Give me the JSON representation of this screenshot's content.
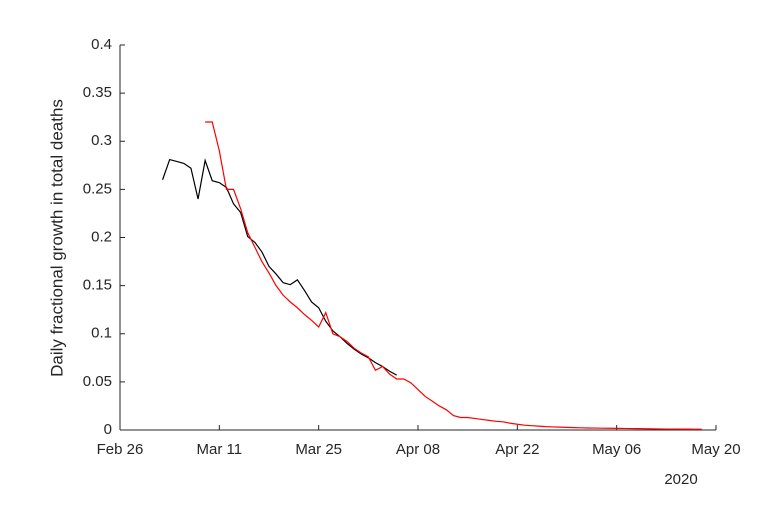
{
  "chart_data": {
    "type": "line",
    "ylabel": "Daily fractional growth in total deaths",
    "year_label": "2020",
    "xlim": [
      "2020-02-26",
      "2020-05-20"
    ],
    "xticks": [
      {
        "value": "2020-02-26",
        "label": "Feb 26"
      },
      {
        "value": "2020-03-11",
        "label": "Mar 11"
      },
      {
        "value": "2020-03-25",
        "label": "Mar 25"
      },
      {
        "value": "2020-04-08",
        "label": "Apr 08"
      },
      {
        "value": "2020-04-22",
        "label": "Apr 22"
      },
      {
        "value": "2020-05-06",
        "label": "May 06"
      },
      {
        "value": "2020-05-20",
        "label": "May 20"
      }
    ],
    "ylim": [
      0,
      0.4
    ],
    "yticks": [
      0,
      0.05,
      0.1,
      0.15,
      0.2,
      0.25,
      0.3,
      0.35,
      0.4
    ],
    "grid": false,
    "series": [
      {
        "color": "#000000",
        "x": [
          "2020-03-03",
          "2020-03-04",
          "2020-03-05",
          "2020-03-06",
          "2020-03-07",
          "2020-03-08",
          "2020-03-09",
          "2020-03-10",
          "2020-03-11",
          "2020-03-12",
          "2020-03-13",
          "2020-03-14",
          "2020-03-15",
          "2020-03-16",
          "2020-03-17",
          "2020-03-18",
          "2020-03-19",
          "2020-03-20",
          "2020-03-21",
          "2020-03-22",
          "2020-03-23",
          "2020-03-24",
          "2020-03-25",
          "2020-03-26",
          "2020-03-27",
          "2020-03-28",
          "2020-03-29",
          "2020-03-30",
          "2020-03-31",
          "2020-04-01",
          "2020-04-02",
          "2020-04-03",
          "2020-04-04",
          "2020-04-05"
        ],
        "values": [
          0.26,
          0.281,
          0.279,
          0.277,
          0.272,
          0.24,
          0.28,
          0.259,
          0.257,
          0.252,
          0.235,
          0.226,
          0.201,
          0.195,
          0.185,
          0.17,
          0.162,
          0.153,
          0.151,
          0.156,
          0.145,
          0.133,
          0.127,
          0.113,
          0.103,
          0.097,
          0.09,
          0.084,
          0.079,
          0.075,
          0.07,
          0.066,
          0.061,
          0.057
        ]
      },
      {
        "color": "#ff0000",
        "x": [
          "2020-03-09",
          "2020-03-10",
          "2020-03-11",
          "2020-03-12",
          "2020-03-13",
          "2020-03-14",
          "2020-03-15",
          "2020-03-16",
          "2020-03-17",
          "2020-03-18",
          "2020-03-19",
          "2020-03-20",
          "2020-03-21",
          "2020-03-22",
          "2020-03-23",
          "2020-03-24",
          "2020-03-25",
          "2020-03-26",
          "2020-03-27",
          "2020-03-28",
          "2020-03-29",
          "2020-03-30",
          "2020-03-31",
          "2020-04-01",
          "2020-04-02",
          "2020-04-03",
          "2020-04-04",
          "2020-04-05",
          "2020-04-06",
          "2020-04-07",
          "2020-04-08",
          "2020-04-09",
          "2020-04-10",
          "2020-04-11",
          "2020-04-12",
          "2020-04-13",
          "2020-04-14",
          "2020-04-15",
          "2020-04-16",
          "2020-04-17",
          "2020-04-18",
          "2020-04-19",
          "2020-04-20",
          "2020-04-21",
          "2020-04-22",
          "2020-04-23",
          "2020-04-24",
          "2020-04-25",
          "2020-04-26",
          "2020-04-27",
          "2020-04-28",
          "2020-04-29",
          "2020-04-30",
          "2020-05-01",
          "2020-05-02",
          "2020-05-03",
          "2020-05-04",
          "2020-05-05",
          "2020-05-06",
          "2020-05-07",
          "2020-05-08",
          "2020-05-09",
          "2020-05-10",
          "2020-05-11",
          "2020-05-12",
          "2020-05-13",
          "2020-05-14",
          "2020-05-15",
          "2020-05-16",
          "2020-05-17",
          "2020-05-18"
        ],
        "values": [
          0.32,
          0.32,
          0.29,
          0.25,
          0.25,
          0.23,
          0.205,
          0.19,
          0.175,
          0.163,
          0.15,
          0.14,
          0.133,
          0.127,
          0.12,
          0.114,
          0.107,
          0.122,
          0.1,
          0.097,
          0.092,
          0.085,
          0.08,
          0.076,
          0.062,
          0.066,
          0.058,
          0.053,
          0.053,
          0.049,
          0.042,
          0.035,
          0.03,
          0.025,
          0.021,
          0.015,
          0.013,
          0.013,
          0.012,
          0.011,
          0.01,
          0.009,
          0.0085,
          0.007,
          0.006,
          0.005,
          0.0045,
          0.004,
          0.0035,
          0.0032,
          0.003,
          0.0027,
          0.0025,
          0.0023,
          0.0021,
          0.002,
          0.0019,
          0.0018,
          0.0017,
          0.0016,
          0.0015,
          0.0014,
          0.0013,
          0.0012,
          0.0011,
          0.001,
          0.001,
          0.0009,
          0.0009,
          0.0008,
          0.0008
        ]
      }
    ]
  }
}
